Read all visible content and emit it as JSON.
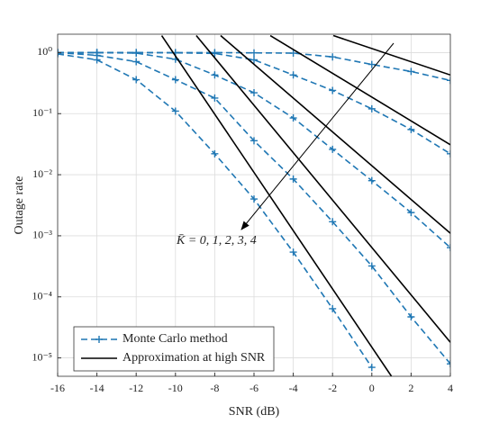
{
  "chart_data": {
    "type": "line",
    "xlabel": "SNR (dB)",
    "ylabel": "Outage rate",
    "annotation": "K̄ = 0, 1, 2, 3, 4",
    "xlim": [
      -16,
      4
    ],
    "xticks": [
      -16,
      -14,
      -12,
      -10,
      -8,
      -6,
      -4,
      -2,
      0,
      2,
      4
    ],
    "ylim": [
      5e-06,
      2
    ],
    "yscale": "log",
    "yticks": [
      {
        "value": 1e-05,
        "label": "10⁻⁵"
      },
      {
        "value": 0.0001,
        "label": "10⁻⁴"
      },
      {
        "value": 0.001,
        "label": "10⁻³"
      },
      {
        "value": 0.01,
        "label": "10⁻²"
      },
      {
        "value": 0.1,
        "label": "10⁻¹"
      },
      {
        "value": 1,
        "label": "10⁰"
      }
    ],
    "grid": true,
    "legend": "lower left",
    "series": [
      {
        "name": "Monte Carlo method",
        "color": "#1f77b4",
        "style": "dashed",
        "marker": "+",
        "x": [
          -16,
          -14,
          -12,
          -10,
          -8,
          -6,
          -4,
          -2,
          0,
          2,
          4
        ],
        "curves": [
          {
            "values": [
              0.95,
              0.76,
              0.36,
              0.11,
              0.022,
              0.004,
              0.00054,
              6.4e-05,
              7e-06,
              null,
              null
            ]
          },
          {
            "values": [
              1,
              0.9,
              0.71,
              0.36,
              0.18,
              0.036,
              0.0085,
              0.0017,
              0.00032,
              4.7e-05,
              8e-06
            ]
          },
          {
            "values": [
              1,
              1,
              0.98,
              0.78,
              0.43,
              0.22,
              0.085,
              0.026,
              0.008,
              0.0024,
              0.00064
            ]
          },
          {
            "values": [
              1,
              1,
              1,
              0.99,
              0.97,
              0.76,
              0.43,
              0.24,
              0.12,
              0.055,
              0.022
            ]
          },
          {
            "values": [
              1,
              1,
              1,
              1,
              1,
              0.99,
              0.98,
              0.85,
              0.64,
              0.49,
              0.35
            ]
          }
        ]
      },
      {
        "name": "Approximation at high SNR",
        "color": "#000000",
        "style": "solid",
        "curves": [
          {
            "x": [
              -10.7,
              1
            ],
            "values": [
              1.9,
              5e-06
            ]
          },
          {
            "x": [
              -8.94,
              4
            ],
            "values": [
              1.9,
              1.8e-05
            ]
          },
          {
            "x": [
              -7.7,
              4
            ],
            "values": [
              1.9,
              0.0011
            ]
          },
          {
            "x": [
              -5.17,
              4
            ],
            "values": [
              1.9,
              0.031
            ]
          },
          {
            "x": [
              -1.96,
              4
            ],
            "values": [
              1.9,
              0.43
            ]
          }
        ]
      }
    ]
  }
}
